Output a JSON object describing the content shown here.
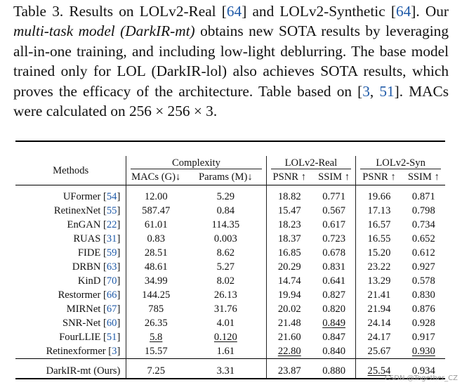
{
  "caption": {
    "p1": "Table 3. Results on LOLv2-Real [",
    "r1": "64",
    "p2": "] and LOLv2-Synthetic [",
    "r2": "64",
    "p3": "]. Our ",
    "em": "multi-task model (DarkIR-mt)",
    "p4": " obtains new SOTA results by leveraging all-in-one training, and including low-light deblurring. The base model trained only for LOL (DarkIR-lol) also achieves SOTA results, which proves the efficacy of the architecture. Table based on [",
    "r3": "3",
    "p5": ", ",
    "r4": "51",
    "p6": "]. MACs were calculated on 256 × 256 × 3."
  },
  "table": {
    "methods_header": "Methods",
    "groups": {
      "complexity": "Complexity",
      "real": "LOLv2-Real",
      "syn": "LOLv2-Syn"
    },
    "subheaders": {
      "macs": "MACs (G)↓",
      "params": "Params (M)↓",
      "psnr_real": "PSNR ↑",
      "ssim_real": "SSIM ↑",
      "psnr_syn": "PSNR ↑",
      "ssim_syn": "SSIM ↑"
    },
    "rows": [
      {
        "name": "UFormer [",
        "ref": "54",
        "close": "]",
        "macs": "12.00",
        "params": "5.29",
        "psnr_r": "18.82",
        "ssim_r": "0.771",
        "psnr_s": "19.66",
        "ssim_s": "0.871"
      },
      {
        "name": "RetinexNet [",
        "ref": "55",
        "close": "]",
        "macs": "587.47",
        "params": "0.84",
        "psnr_r": "15.47",
        "ssim_r": "0.567",
        "psnr_s": "17.13",
        "ssim_s": "0.798"
      },
      {
        "name": "EnGAN [",
        "ref": "22",
        "close": "]",
        "macs": "61.01",
        "params": "114.35",
        "psnr_r": "18.23",
        "ssim_r": "0.617",
        "psnr_s": "16.57",
        "ssim_s": "0.734"
      },
      {
        "name": "RUAS [",
        "ref": "31",
        "close": "]",
        "macs": "0.83",
        "params": "0.003",
        "psnr_r": "18.37",
        "ssim_r": "0.723",
        "psnr_s": "16.55",
        "ssim_s": "0.652"
      },
      {
        "name": "FIDE [",
        "ref": "59",
        "close": "]",
        "macs": "28.51",
        "params": "8.62",
        "psnr_r": "16.85",
        "ssim_r": "0.678",
        "psnr_s": "15.20",
        "ssim_s": "0.612"
      },
      {
        "name": "DRBN [",
        "ref": "63",
        "close": "]",
        "macs": "48.61",
        "params": "5.27",
        "psnr_r": "20.29",
        "ssim_r": "0.831",
        "psnr_s": "23.22",
        "ssim_s": "0.927"
      },
      {
        "name": "KinD [",
        "ref": "70",
        "close": "]",
        "macs": "34.99",
        "params": "8.02",
        "psnr_r": "14.74",
        "ssim_r": "0.641",
        "psnr_s": "13.29",
        "ssim_s": "0.578"
      },
      {
        "name": "Restormer [",
        "ref": "66",
        "close": "]",
        "macs": "144.25",
        "params": "26.13",
        "psnr_r": "19.94",
        "ssim_r": "0.827",
        "psnr_s": "21.41",
        "ssim_s": "0.830"
      },
      {
        "name": "MIRNet [",
        "ref": "67",
        "close": "]",
        "macs": "785",
        "params": "31.76",
        "psnr_r": "20.02",
        "ssim_r": "0.820",
        "psnr_s": "21.94",
        "ssim_s": "0.876"
      },
      {
        "name": "SNR-Net [",
        "ref": "60",
        "close": "]",
        "macs": "26.35",
        "params": "4.01",
        "psnr_r": "21.48",
        "ssim_r": "0.849",
        "psnr_s": "24.14",
        "ssim_s": "0.928"
      },
      {
        "name": "FourLLIE [",
        "ref": "51",
        "close": "]",
        "macs": "5.8",
        "params": "0.120",
        "psnr_r": "21.60",
        "ssim_r": "0.847",
        "psnr_s": "24.17",
        "ssim_s": "0.917"
      },
      {
        "name": "Retinexformer [",
        "ref": "3",
        "close": "]",
        "macs": "15.57",
        "params": "1.61",
        "psnr_r": "22.80",
        "ssim_r": "0.840",
        "psnr_s": "25.67",
        "ssim_s": "0.930"
      }
    ],
    "ours": {
      "name": "DarkIR-mt (Ours)",
      "macs": "7.25",
      "params": "3.31",
      "psnr_r": "23.87",
      "ssim_r": "0.880",
      "psnr_s": "25.54",
      "ssim_s": "0.934"
    }
  },
  "watermark": "CSDN @Together_CZ"
}
